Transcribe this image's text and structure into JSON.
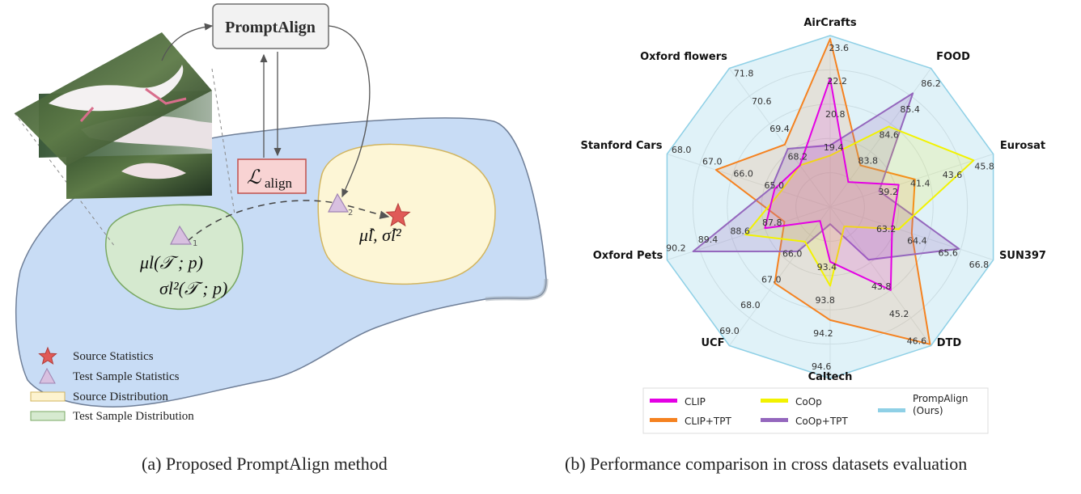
{
  "panel_a": {
    "method_box": "PromptAlign",
    "loss_symbol": "ℒ",
    "loss_subscript": "align",
    "triangle1_index": "1",
    "triangle2_index": "2",
    "test_stats_line1": "μl(𝒯 ; p)",
    "test_stats_line2": "σl²(𝒯 ; p)",
    "source_stats": "μ̂l, σ̂l²",
    "legend": [
      {
        "label": "Source Statistics",
        "icon": "star-icon",
        "color": "#d9534f"
      },
      {
        "label": "Test Sample Statistics",
        "icon": "triangle-icon",
        "color": "#d8c0e0"
      },
      {
        "label": "Source Distribution",
        "icon": "rect-icon",
        "color": "#fdf3cf"
      },
      {
        "label": "Test Sample Distribution",
        "icon": "rect-icon",
        "color": "#d6ead0"
      }
    ],
    "colors": {
      "manifold": "#c8dcf5",
      "source_region": "#fdf6d6",
      "test_region": "#d5e9cf",
      "loss_box": "#f8d3d3"
    },
    "caption": "(a) Proposed PromptAlign method"
  },
  "chart_data": {
    "type": "radar",
    "axes": [
      "AirCrafts",
      "FOOD",
      "Eurosat",
      "SUN397",
      "DTD",
      "Caltech",
      "UCF",
      "Oxford Pets",
      "Stanford Cars",
      "Oxford flowers"
    ],
    "ring_ticks": [
      [
        "19.4",
        "20.8",
        "22.2",
        "23.6"
      ],
      [
        "83.8",
        "84.6",
        "85.4",
        "86.2"
      ],
      [
        "39.2",
        "41.4",
        "43.6",
        "45.8"
      ],
      [
        "63.2",
        "64.4",
        "65.6",
        "66.8"
      ],
      [
        "43.8",
        "45.2",
        "46.6"
      ],
      [
        "93.4",
        "93.8",
        "94.2",
        "94.6"
      ],
      [
        "66.0",
        "67.0",
        "68.0",
        "69.0"
      ],
      [
        "87.8",
        "88.6",
        "89.4",
        "90.2"
      ],
      [
        "65.0",
        "66.0",
        "67.0",
        "68.0"
      ],
      [
        "68.2",
        "69.4",
        "70.6",
        "71.8"
      ]
    ],
    "series": [
      {
        "name": "CLIP",
        "color": "#e400e4",
        "fill": "rgba(228,0,228,0.12)",
        "values": [
          0.75,
          0.18,
          0.42,
          0.38,
          0.6,
          0.32,
          0.1,
          0.4,
          0.34,
          0.3
        ]
      },
      {
        "name": "CLIP+TPT",
        "color": "#f58220",
        "fill": "rgba(245,130,32,0.14)",
        "values": [
          0.98,
          0.3,
          0.52,
          0.5,
          0.99,
          0.66,
          0.55,
          0.28,
          0.7,
          0.45
        ]
      },
      {
        "name": "CoOp",
        "color": "#f2f200",
        "fill": "rgba(242,242,0,0.14)",
        "values": [
          0.3,
          0.58,
          0.88,
          0.42,
          0.14,
          0.46,
          0.25,
          0.52,
          0.3,
          0.3
        ]
      },
      {
        "name": "CoOp+TPT",
        "color": "#9467bd",
        "fill": "rgba(148,103,189,0.22)",
        "values": [
          0.36,
          0.82,
          0.3,
          0.79,
          0.38,
          0.1,
          0.32,
          0.84,
          0.36,
          0.42
        ]
      },
      {
        "name": "PrompAlign\n(Ours)",
        "color": "#8fd0e6",
        "fill": "rgba(143,208,230,0.28)",
        "values": [
          1,
          1,
          1,
          1,
          1,
          1,
          1,
          1,
          1,
          1
        ]
      }
    ],
    "grid": true,
    "legend_position": "bottom",
    "caption": "(b) Performance comparison in cross datasets evaluation"
  }
}
